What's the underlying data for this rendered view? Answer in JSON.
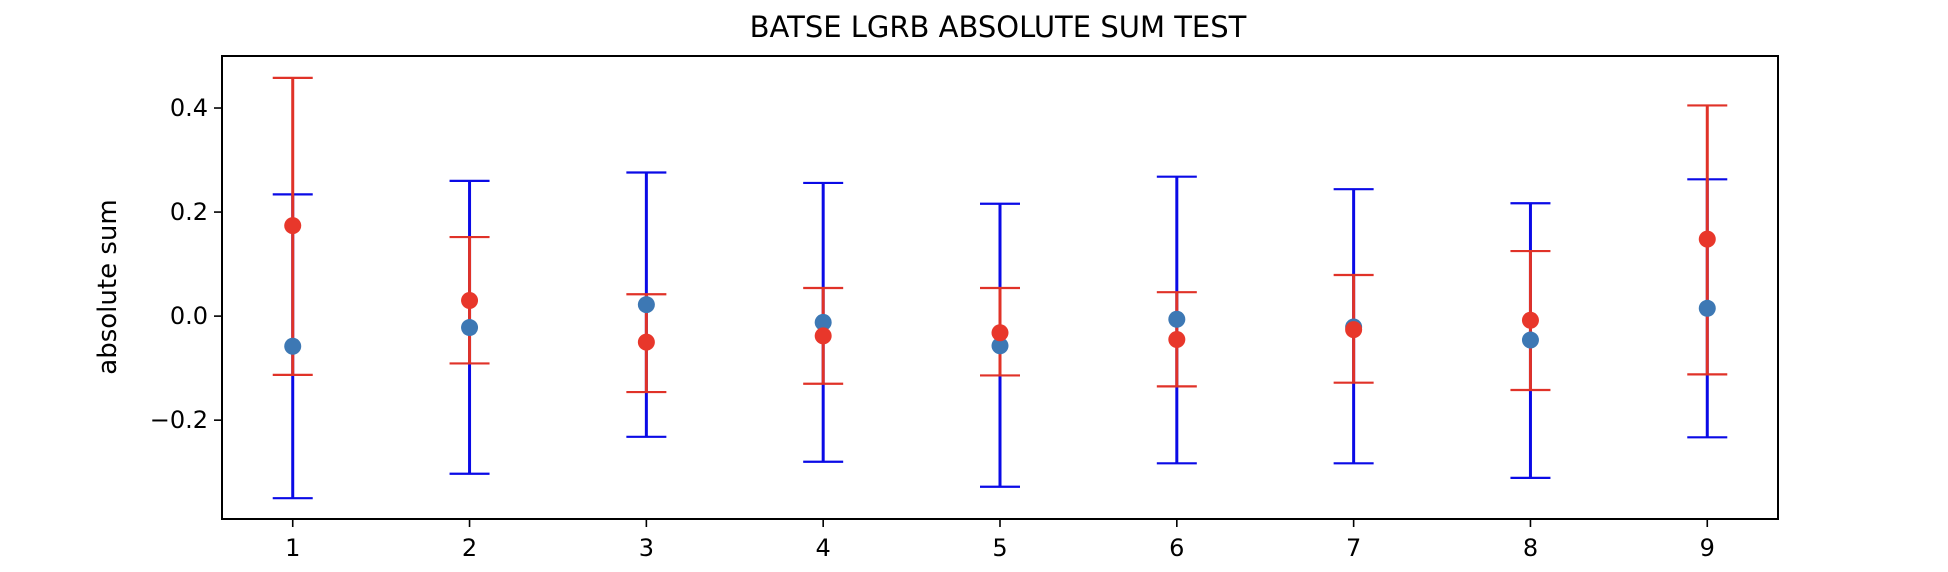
{
  "chart_data": {
    "type": "scatter",
    "title": "BATSE LGRB ABSOLUTE SUM TEST",
    "xlabel": "",
    "ylabel": "absolute sum",
    "x": [
      1,
      2,
      3,
      4,
      5,
      6,
      7,
      8,
      9
    ],
    "xlim": [
      0.6,
      9.4
    ],
    "ylim": [
      -0.39,
      0.5
    ],
    "xticks": [
      1,
      2,
      3,
      4,
      5,
      6,
      7,
      8,
      9
    ],
    "yticks": [
      -0.2,
      0.0,
      0.2,
      0.4
    ],
    "ytick_labels": [
      "−0.2",
      "0.0",
      "0.2",
      "0.4"
    ],
    "grid": false,
    "series": [
      {
        "color": "#0a0ae6",
        "point_color": "#3d78b4",
        "values": [
          -0.058,
          -0.022,
          0.022,
          -0.012,
          -0.057,
          -0.006,
          -0.021,
          -0.046,
          0.015
        ],
        "err_low": [
          -0.35,
          -0.303,
          -0.232,
          -0.28,
          -0.328,
          -0.283,
          -0.283,
          -0.311,
          -0.233
        ],
        "err_high": [
          0.234,
          0.26,
          0.276,
          0.256,
          0.216,
          0.268,
          0.244,
          0.217,
          0.263
        ]
      },
      {
        "color": "#e03228",
        "point_color": "#e8372b",
        "values": [
          0.174,
          0.03,
          -0.05,
          -0.038,
          -0.032,
          -0.045,
          -0.026,
          -0.008,
          0.148
        ],
        "err_low": [
          -0.113,
          -0.091,
          -0.146,
          -0.13,
          -0.114,
          -0.135,
          -0.128,
          -0.142,
          -0.112
        ],
        "err_high": [
          0.458,
          0.152,
          0.042,
          0.054,
          0.054,
          0.046,
          0.079,
          0.125,
          0.405
        ]
      }
    ]
  }
}
